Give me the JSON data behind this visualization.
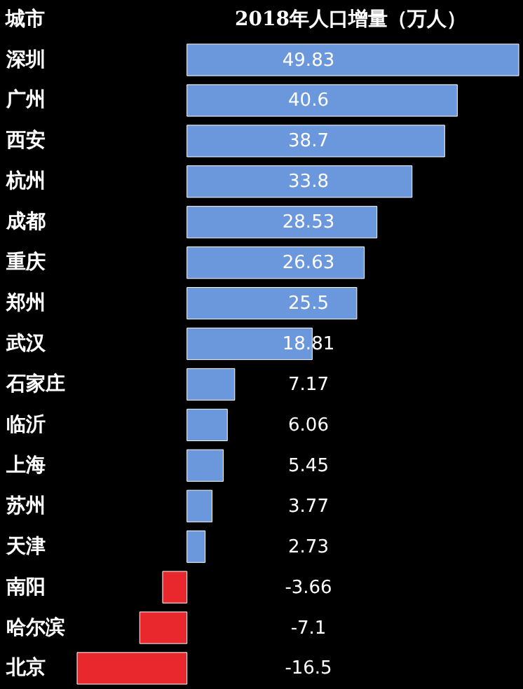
{
  "chart_data": {
    "type": "bar",
    "orientation": "horizontal",
    "title": "2018年人口增量（万人）",
    "ylabel": "城市",
    "categories": [
      "深圳",
      "广州",
      "西安",
      "杭州",
      "成都",
      "重庆",
      "郑州",
      "武汉",
      "石家庄",
      "临沂",
      "上海",
      "苏州",
      "天津",
      "南阳",
      "哈尔滨",
      "北京"
    ],
    "values": [
      49.83,
      40.6,
      38.7,
      33.8,
      28.53,
      26.63,
      25.5,
      18.81,
      7.17,
      6.06,
      5.45,
      3.77,
      2.73,
      -3.66,
      -7.1,
      -16.5
    ],
    "colors": [
      "#6b97dc",
      "#6b97dc",
      "#6b97dc",
      "#6b97dc",
      "#6b97dc",
      "#6b97dc",
      "#6b97dc",
      "#6b97dc",
      "#6b97dc",
      "#6b97dc",
      "#6b97dc",
      "#6b97dc",
      "#6b97dc",
      "#e8282c",
      "#e8282c",
      "#e8282c"
    ],
    "data_labels": true
  }
}
